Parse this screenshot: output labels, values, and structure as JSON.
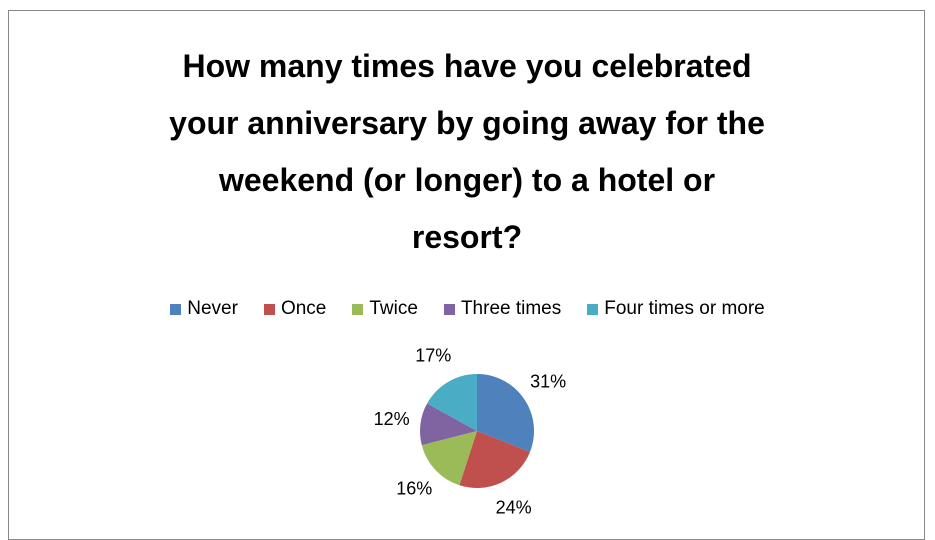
{
  "chart_data": {
    "type": "pie",
    "title": "How many times have you celebrated your anniversary by going away for the weekend (or longer) to a hotel or resort?",
    "categories": [
      "Never",
      "Once",
      "Twice",
      "Three times",
      "Four times or more"
    ],
    "values": [
      31,
      24,
      16,
      12,
      17
    ],
    "value_labels": [
      "31%",
      "24%",
      "16%",
      "12%",
      "17%"
    ],
    "colors": [
      "#4f81bd",
      "#c0504d",
      "#9bbb59",
      "#8064a2",
      "#4bacc6"
    ],
    "legend": "top"
  }
}
